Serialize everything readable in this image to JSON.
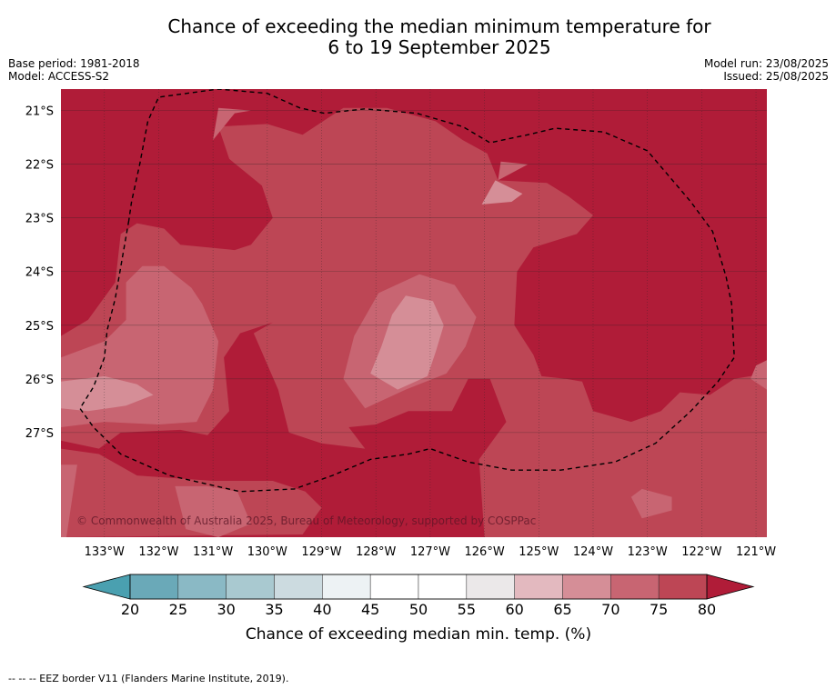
{
  "title_line1": "Chance of exceeding the median minimum temperature for",
  "title_line2": "6 to 19 September 2025",
  "meta_left": [
    "Base period: 1981-2018",
    "Model: ACCESS-S2"
  ],
  "meta_right": [
    "Model run: 23/08/2025",
    "Issued: 25/08/2025"
  ],
  "copyright": "© Commonwealth of Australia 2025, Bureau of Meteorology, supported by COSPPac",
  "footer": "-- -- -- EEZ border V11 (Flanders Marine Institute, 2019).",
  "chart_data": {
    "type": "heatmap",
    "xlim": [
      -133.8,
      -120.8
    ],
    "ylim": [
      -28.95,
      -20.6
    ],
    "x_ticks": [
      -133,
      -132,
      -131,
      -130,
      -129,
      -128,
      -127,
      -126,
      -125,
      -124,
      -123,
      -122,
      -121
    ],
    "x_tick_labels": [
      "133°W",
      "132°W",
      "131°W",
      "130°W",
      "129°W",
      "128°W",
      "127°W",
      "126°W",
      "125°W",
      "124°W",
      "123°W",
      "122°W",
      "121°W"
    ],
    "y_ticks": [
      -21,
      -22,
      -23,
      -24,
      -25,
      -26,
      -27
    ],
    "y_tick_labels": [
      "21°S",
      "22°S",
      "23°S",
      "24°S",
      "25°S",
      "26°S",
      "27°S"
    ],
    "grid": true,
    "colorbar": {
      "label": "Chance of exceeding median min. temp. (%)",
      "ticks": [
        20,
        25,
        30,
        35,
        40,
        45,
        50,
        55,
        60,
        65,
        70,
        75,
        80
      ],
      "bins": [
        {
          "range": [
            20,
            25
          ],
          "color": "#6aa9b8"
        },
        {
          "range": [
            25,
            30
          ],
          "color": "#8ab9c5"
        },
        {
          "range": [
            30,
            35
          ],
          "color": "#a9c9d0"
        },
        {
          "range": [
            35,
            40
          ],
          "color": "#ccdbe0"
        },
        {
          "range": [
            40,
            45
          ],
          "color": "#edf2f4"
        },
        {
          "range": [
            45,
            50
          ],
          "color": "#ffffff"
        },
        {
          "range": [
            50,
            55
          ],
          "color": "#ffffff"
        },
        {
          "range": [
            55,
            60
          ],
          "color": "#ebe8e9"
        },
        {
          "range": [
            60,
            65
          ],
          "color": "#e3b9bf"
        },
        {
          "range": [
            65,
            70
          ],
          "color": "#d58e97"
        },
        {
          "range": [
            70,
            75
          ],
          "color": "#c86572"
        },
        {
          "range": [
            75,
            80
          ],
          "color": "#bd4655"
        }
      ],
      "under_color": "#4aa0b0",
      "over_color": "#b01c38"
    },
    "levels": [
      {
        "min": 80,
        "color": "#b01c38",
        "regions": [
          [
            [
              -133.8,
              -20.6
            ],
            [
              -120.8,
              -20.6
            ],
            [
              -120.8,
              -28.95
            ],
            [
              -133.8,
              -28.95
            ]
          ]
        ]
      },
      {
        "min": 75,
        "color": "#bd4655",
        "regions": [
          [
            [
              -133.8,
              -25.2
            ],
            [
              -133.3,
              -24.9
            ],
            [
              -132.8,
              -24.2
            ],
            [
              -132.7,
              -23.3
            ],
            [
              -132.4,
              -23.1
            ],
            [
              -131.9,
              -23.2
            ],
            [
              -131.6,
              -23.5
            ],
            [
              -130.6,
              -23.6
            ],
            [
              -130.3,
              -23.5
            ],
            [
              -129.9,
              -23.0
            ],
            [
              -130.1,
              -22.4
            ],
            [
              -130.7,
              -21.9
            ],
            [
              -130.9,
              -21.3
            ],
            [
              -130.0,
              -21.25
            ],
            [
              -129.35,
              -21.45
            ],
            [
              -128.6,
              -20.95
            ],
            [
              -127.8,
              -20.95
            ],
            [
              -126.9,
              -21.2
            ],
            [
              -126.4,
              -21.55
            ],
            [
              -125.95,
              -21.8
            ],
            [
              -125.75,
              -22.3
            ],
            [
              -124.85,
              -22.35
            ],
            [
              -124.45,
              -22.6
            ],
            [
              -124.0,
              -22.95
            ],
            [
              -124.3,
              -23.3
            ],
            [
              -125.1,
              -23.55
            ],
            [
              -125.4,
              -24.0
            ],
            [
              -125.45,
              -25.0
            ],
            [
              -125.1,
              -25.55
            ],
            [
              -124.95,
              -25.95
            ],
            [
              -124.5,
              -26.0
            ],
            [
              -124.2,
              -26.05
            ],
            [
              -124.0,
              -26.6
            ],
            [
              -123.3,
              -26.8
            ],
            [
              -122.75,
              -26.6
            ],
            [
              -122.4,
              -26.25
            ],
            [
              -121.85,
              -26.3
            ],
            [
              -121.4,
              -26.0
            ],
            [
              -120.8,
              -25.9
            ],
            [
              -120.8,
              -28.95
            ],
            [
              -126.0,
              -28.95
            ],
            [
              -126.1,
              -27.5
            ],
            [
              -125.6,
              -26.8
            ],
            [
              -125.9,
              -26.0
            ],
            [
              -126.3,
              -26.0
            ],
            [
              -126.6,
              -26.6
            ],
            [
              -127.4,
              -26.6
            ],
            [
              -128.0,
              -26.85
            ],
            [
              -128.5,
              -26.9
            ],
            [
              -128.2,
              -27.3
            ],
            [
              -129.0,
              -27.2
            ],
            [
              -129.6,
              -27.0
            ],
            [
              -129.8,
              -26.2
            ],
            [
              -130.25,
              -25.15
            ],
            [
              -129.9,
              -24.95
            ],
            [
              -130.5,
              -25.15
            ],
            [
              -130.8,
              -25.6
            ],
            [
              -130.7,
              -26.6
            ],
            [
              -131.1,
              -27.05
            ],
            [
              -131.6,
              -26.95
            ],
            [
              -132.7,
              -27.0
            ],
            [
              -133.1,
              -27.3
            ],
            [
              -133.8,
              -27.15
            ]
          ],
          [
            [
              -122.0,
              -28.95
            ],
            [
              -121.9,
              -27.6
            ],
            [
              -121.6,
              -27.2
            ],
            [
              -121.45,
              -27.0
            ],
            [
              -121.0,
              -26.9
            ],
            [
              -120.8,
              -26.7
            ],
            [
              -120.8,
              -28.95
            ]
          ],
          [
            [
              -133.8,
              -27.3
            ],
            [
              -133.1,
              -27.4
            ],
            [
              -132.4,
              -27.8
            ],
            [
              -131.0,
              -27.9
            ],
            [
              -129.9,
              -27.9
            ],
            [
              -129.3,
              -28.1
            ],
            [
              -129.0,
              -28.4
            ],
            [
              -129.35,
              -28.9
            ],
            [
              -133.8,
              -28.95
            ]
          ]
        ]
      },
      {
        "min": 70,
        "color": "#c86572",
        "regions": [
          [
            [
              -133.8,
              -25.6
            ],
            [
              -133.0,
              -25.3
            ],
            [
              -132.6,
              -24.9
            ],
            [
              -132.6,
              -24.2
            ],
            [
              -132.3,
              -23.9
            ],
            [
              -131.9,
              -23.9
            ],
            [
              -131.4,
              -24.3
            ],
            [
              -131.2,
              -24.6
            ],
            [
              -130.9,
              -25.3
            ],
            [
              -131.0,
              -26.2
            ],
            [
              -131.3,
              -26.8
            ],
            [
              -132.0,
              -26.85
            ],
            [
              -133.0,
              -26.8
            ],
            [
              -133.8,
              -26.9
            ]
          ],
          [
            [
              -131.0,
              -21.55
            ],
            [
              -130.6,
              -21.05
            ],
            [
              -130.3,
              -21.0
            ],
            [
              -130.9,
              -20.95
            ]
          ],
          [
            [
              -128.2,
              -26.55
            ],
            [
              -127.45,
              -26.2
            ],
            [
              -126.7,
              -25.9
            ],
            [
              -126.35,
              -25.4
            ],
            [
              -126.15,
              -24.85
            ],
            [
              -126.55,
              -24.25
            ],
            [
              -127.2,
              -24.05
            ],
            [
              -127.95,
              -24.4
            ],
            [
              -128.4,
              -25.2
            ],
            [
              -128.6,
              -26.0
            ]
          ],
          [
            [
              -125.75,
              -22.3
            ],
            [
              -125.2,
              -22.0
            ],
            [
              -125.7,
              -21.95
            ]
          ],
          [
            [
              -122.55,
              -28.2
            ],
            [
              -123.1,
              -28.05
            ],
            [
              -123.3,
              -28.2
            ],
            [
              -123.1,
              -28.6
            ],
            [
              -122.55,
              -28.45
            ]
          ],
          [
            [
              -133.8,
              -27.6
            ],
            [
              -133.5,
              -27.6
            ],
            [
              -133.7,
              -28.95
            ],
            [
              -133.8,
              -28.95
            ]
          ],
          [
            [
              -131.7,
              -28.0
            ],
            [
              -131.1,
              -28.0
            ],
            [
              -130.55,
              -28.1
            ],
            [
              -130.3,
              -28.7
            ],
            [
              -130.9,
              -28.95
            ],
            [
              -131.5,
              -28.8
            ]
          ],
          [
            [
              -121.1,
              -26.0
            ],
            [
              -120.8,
              -26.2
            ],
            [
              -120.8,
              -25.65
            ],
            [
              -121.0,
              -25.75
            ]
          ]
        ]
      },
      {
        "min": 65,
        "color": "#d58e97",
        "regions": [
          [
            [
              -133.8,
              -26.05
            ],
            [
              -133.0,
              -25.95
            ],
            [
              -132.4,
              -26.1
            ],
            [
              -132.1,
              -26.3
            ],
            [
              -132.6,
              -26.5
            ],
            [
              -133.3,
              -26.6
            ],
            [
              -133.8,
              -26.55
            ]
          ],
          [
            [
              -127.6,
              -26.2
            ],
            [
              -127.05,
              -25.95
            ],
            [
              -126.9,
              -25.5
            ],
            [
              -126.75,
              -25.0
            ],
            [
              -126.95,
              -24.55
            ],
            [
              -127.45,
              -24.45
            ],
            [
              -127.7,
              -24.8
            ],
            [
              -127.9,
              -25.4
            ],
            [
              -128.1,
              -25.9
            ]
          ],
          [
            [
              -126.05,
              -22.75
            ],
            [
              -125.5,
              -22.7
            ],
            [
              -125.3,
              -22.55
            ],
            [
              -125.8,
              -22.3
            ]
          ]
        ]
      }
    ],
    "eez_border": [
      [
        -132.55,
        -23.05
      ],
      [
        -132.8,
        -24.5
      ],
      [
        -132.95,
        -25.1
      ],
      [
        -133.0,
        -25.6
      ],
      [
        -133.2,
        -26.15
      ],
      [
        -133.45,
        -26.55
      ],
      [
        -133.2,
        -26.9
      ],
      [
        -132.7,
        -27.4
      ],
      [
        -131.8,
        -27.8
      ],
      [
        -130.5,
        -28.1
      ],
      [
        -129.5,
        -28.05
      ],
      [
        -128.8,
        -27.8
      ],
      [
        -128.1,
        -27.5
      ],
      [
        -127.4,
        -27.4
      ],
      [
        -127.0,
        -27.3
      ],
      [
        -126.3,
        -27.55
      ],
      [
        -125.5,
        -27.7
      ],
      [
        -124.6,
        -27.7
      ],
      [
        -123.6,
        -27.55
      ],
      [
        -122.85,
        -27.2
      ],
      [
        -122.2,
        -26.6
      ],
      [
        -121.7,
        -26.05
      ],
      [
        -121.4,
        -25.6
      ],
      [
        -121.45,
        -24.6
      ],
      [
        -121.55,
        -24.1
      ],
      [
        -121.8,
        -23.25
      ],
      [
        -122.2,
        -22.7
      ],
      [
        -123.0,
        -21.75
      ],
      [
        -123.8,
        -21.4
      ],
      [
        -124.7,
        -21.33
      ],
      [
        -125.2,
        -21.45
      ],
      [
        -125.9,
        -21.6
      ],
      [
        -126.4,
        -21.3
      ],
      [
        -127.25,
        -21.05
      ],
      [
        -128.2,
        -20.97
      ],
      [
        -128.95,
        -21.05
      ],
      [
        -129.4,
        -20.95
      ],
      [
        -130.0,
        -20.68
      ],
      [
        -130.9,
        -20.6
      ],
      [
        -132.0,
        -20.75
      ],
      [
        -132.2,
        -21.2
      ],
      [
        -132.35,
        -22.0
      ],
      [
        -132.5,
        -22.7
      ]
    ]
  }
}
